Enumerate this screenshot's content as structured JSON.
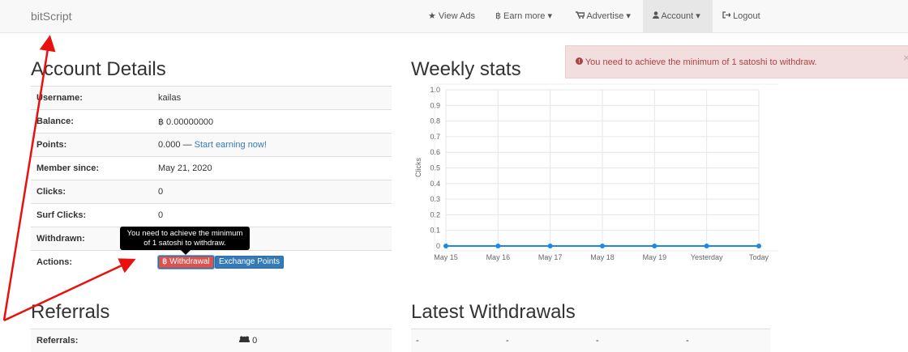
{
  "navbar": {
    "brand": "bitScript",
    "items": [
      "View Ads",
      "฿ Earn more",
      "Advertise",
      "Account",
      "Logout"
    ]
  },
  "alert": {
    "message": "You need to achieve the minimum of 1 satoshi to withdraw.",
    "close": "×"
  },
  "account_details": {
    "title": "Account Details",
    "rows": [
      {
        "label": "Username:",
        "value": "kailas"
      },
      {
        "label": "Balance:",
        "value": "฿ 0.00000000"
      },
      {
        "label": "Points:",
        "value": "0.000 —",
        "link": "Start earning now!"
      },
      {
        "label": "Member since:",
        "value": "May 21, 2020"
      },
      {
        "label": "Clicks:",
        "value": "0"
      },
      {
        "label": "Surf Clicks:",
        "value": "0"
      },
      {
        "label": "Withdrawn:"
      },
      {
        "label": "Actions:",
        "buttons": [
          "฿ Withdrawal",
          "Exchange Points"
        ]
      }
    ]
  },
  "tooltip": {
    "lines": [
      "You need to achieve the minimum",
      "of 1 satoshi to withdraw."
    ]
  },
  "weekly_stats": {
    "title": "Weekly stats",
    "chart": {
      "type": "line",
      "y_label": "Clicks",
      "categories": [
        "May 15",
        "May 16",
        "May 17",
        "May 18",
        "May 19",
        "Yesterday",
        "Today"
      ],
      "values": [
        0,
        0,
        0,
        0,
        0,
        0,
        0
      ],
      "color": "#1e88e5",
      "ylim": [
        0,
        1
      ],
      "yticks": [
        0,
        0.1,
        0.2,
        0.3,
        0.4,
        0.5,
        0.6,
        0.7,
        0.8,
        0.9,
        {
          "value": 1,
          "label": "1.0"
        }
      ],
      "grid": true
    }
  },
  "referrals": {
    "title": "Referrals",
    "rows": [
      {
        "label": "Referrals:",
        "value": "0"
      }
    ]
  },
  "latest_withdrawals": {
    "title": "Latest Withdrawals",
    "rows": [
      [
        "-",
        "-",
        "-",
        "-"
      ]
    ]
  }
}
